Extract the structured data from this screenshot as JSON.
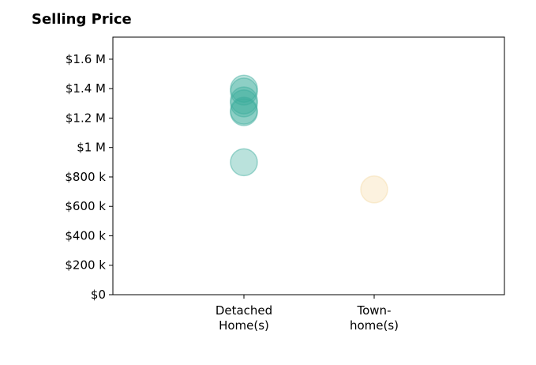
{
  "chart_data": {
    "type": "scatter",
    "title": "Selling Price",
    "xlabel": "",
    "ylabel": "",
    "categories": [
      [
        "Detached",
        "Home(s)"
      ],
      [
        "Town-",
        "home(s)"
      ]
    ],
    "ylim": [
      0,
      1750000
    ],
    "yticks": [
      0,
      200000,
      400000,
      600000,
      800000,
      1000000,
      1200000,
      1400000,
      1600000
    ],
    "ytick_labels": [
      "$0",
      "$200 k",
      "$400 k",
      "$600 k",
      "$800 k",
      "$1 M",
      "$1.2 M",
      "$1.4 M",
      "$1.6 M"
    ],
    "grid": false,
    "series": [
      {
        "category_index": 0,
        "color": "#3aab9c",
        "values": [
          1400000,
          1380000,
          1320000,
          1300000,
          1250000,
          1240000,
          900000
        ]
      },
      {
        "category_index": 1,
        "color": "#f5d9a3",
        "values": [
          715000
        ]
      }
    ]
  }
}
